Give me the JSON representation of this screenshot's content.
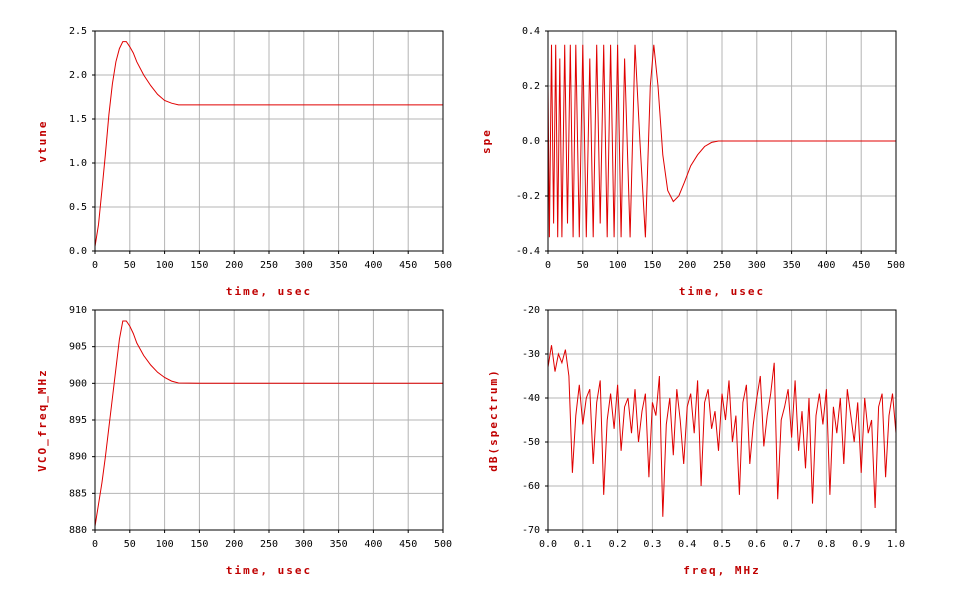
{
  "colors": {
    "trace": "#e00000",
    "label": "#c00000",
    "grid": "#b4b4b4",
    "axis": "#000000"
  },
  "chart_data": [
    {
      "type": "line",
      "xlabel": "time, usec",
      "ylabel": "vtune",
      "xlim": [
        0,
        500
      ],
      "ylim": [
        0,
        2.5
      ],
      "xticks": [
        "0",
        "50",
        "100",
        "150",
        "200",
        "250",
        "300",
        "350",
        "400",
        "450",
        "500"
      ],
      "yticks": [
        "0.0",
        "0.5",
        "1.0",
        "1.5",
        "2.0",
        "2.5"
      ],
      "grid": true,
      "series": [
        {
          "x": [
            0,
            5,
            10,
            15,
            20,
            25,
            30,
            35,
            40,
            45,
            50,
            55,
            60,
            70,
            80,
            90,
            100,
            110,
            120,
            150,
            200,
            300,
            400,
            500
          ],
          "y": [
            0.05,
            0.3,
            0.7,
            1.1,
            1.55,
            1.9,
            2.15,
            2.3,
            2.38,
            2.38,
            2.32,
            2.25,
            2.15,
            2.0,
            1.88,
            1.78,
            1.71,
            1.68,
            1.66,
            1.66,
            1.66,
            1.66,
            1.66,
            1.66
          ]
        }
      ]
    },
    {
      "type": "line",
      "xlabel": "time, usec",
      "ylabel": "spe",
      "xlim": [
        0,
        500
      ],
      "ylim": [
        -0.4,
        0.4
      ],
      "xticks": [
        "0",
        "50",
        "100",
        "150",
        "200",
        "250",
        "300",
        "350",
        "400",
        "450",
        "500"
      ],
      "yticks": [
        "-0.4",
        "-0.2",
        "0.0",
        "0.2",
        "0.4"
      ],
      "grid": true,
      "series": [
        {
          "x": [
            0,
            2,
            5,
            8,
            11,
            14,
            17,
            20,
            24,
            28,
            32,
            36,
            40,
            45,
            50,
            55,
            60,
            65,
            70,
            75,
            80,
            85,
            90,
            95,
            100,
            105,
            110,
            118,
            125,
            132,
            140,
            147,
            152,
            158,
            165,
            172,
            180,
            188,
            196,
            205,
            215,
            225,
            235,
            245,
            250,
            300,
            350,
            400,
            450,
            500
          ],
          "y": [
            0.2,
            -0.35,
            0.35,
            -0.3,
            0.35,
            -0.35,
            0.3,
            -0.35,
            0.35,
            -0.3,
            0.35,
            -0.35,
            0.35,
            -0.35,
            0.35,
            -0.35,
            0.3,
            -0.35,
            0.35,
            -0.3,
            0.35,
            -0.35,
            0.35,
            -0.35,
            0.35,
            -0.35,
            0.3,
            -0.35,
            0.35,
            0.0,
            -0.35,
            0.2,
            0.35,
            0.2,
            -0.05,
            -0.18,
            -0.22,
            -0.2,
            -0.15,
            -0.09,
            -0.05,
            -0.02,
            -0.005,
            0.0,
            0.0,
            0.0,
            0.0,
            0.0,
            0.0,
            0.0
          ]
        }
      ]
    },
    {
      "type": "line",
      "xlabel": "time, usec",
      "ylabel": "VCO_freq_MHz",
      "xlim": [
        0,
        500
      ],
      "ylim": [
        880,
        910
      ],
      "xticks": [
        "0",
        "50",
        "100",
        "150",
        "200",
        "250",
        "300",
        "350",
        "400",
        "450",
        "500"
      ],
      "yticks": [
        "880",
        "885",
        "890",
        "895",
        "900",
        "905",
        "910"
      ],
      "grid": true,
      "series": [
        {
          "x": [
            0,
            5,
            10,
            15,
            20,
            25,
            30,
            35,
            40,
            45,
            50,
            55,
            60,
            70,
            80,
            90,
            100,
            110,
            120,
            150,
            200,
            300,
            400,
            500
          ],
          "y": [
            880.5,
            883.5,
            886.5,
            890,
            894,
            898,
            902,
            906,
            908.5,
            908.5,
            907.8,
            906.8,
            905.5,
            903.8,
            902.5,
            901.5,
            900.8,
            900.3,
            900.05,
            900.0,
            900.0,
            900.0,
            900.0,
            900.0
          ]
        }
      ]
    },
    {
      "type": "line",
      "xlabel": "freq, MHz",
      "ylabel": "dB(spectrum)",
      "xlim": [
        0,
        1.0
      ],
      "ylim": [
        -70,
        -20
      ],
      "xticks": [
        "0.0",
        "0.1",
        "0.2",
        "0.3",
        "0.4",
        "0.5",
        "0.6",
        "0.7",
        "0.8",
        "0.9",
        "1.0"
      ],
      "yticks": [
        "-70",
        "-60",
        "-50",
        "-40",
        "-30",
        "-20"
      ],
      "grid": true,
      "series": [
        {
          "x": [
            0.0,
            0.01,
            0.02,
            0.03,
            0.04,
            0.05,
            0.06,
            0.07,
            0.08,
            0.09,
            0.1,
            0.11,
            0.12,
            0.13,
            0.14,
            0.15,
            0.16,
            0.17,
            0.18,
            0.19,
            0.2,
            0.21,
            0.22,
            0.23,
            0.24,
            0.25,
            0.26,
            0.27,
            0.28,
            0.29,
            0.3,
            0.31,
            0.32,
            0.33,
            0.34,
            0.35,
            0.36,
            0.37,
            0.38,
            0.39,
            0.4,
            0.41,
            0.42,
            0.43,
            0.44,
            0.45,
            0.46,
            0.47,
            0.48,
            0.49,
            0.5,
            0.51,
            0.52,
            0.53,
            0.54,
            0.55,
            0.56,
            0.57,
            0.58,
            0.59,
            0.6,
            0.61,
            0.62,
            0.63,
            0.64,
            0.65,
            0.66,
            0.67,
            0.68,
            0.69,
            0.7,
            0.71,
            0.72,
            0.73,
            0.74,
            0.75,
            0.76,
            0.77,
            0.78,
            0.79,
            0.8,
            0.81,
            0.82,
            0.83,
            0.84,
            0.85,
            0.86,
            0.87,
            0.88,
            0.89,
            0.9,
            0.91,
            0.92,
            0.93,
            0.94,
            0.95,
            0.96,
            0.97,
            0.98,
            0.99,
            1.0
          ],
          "y": [
            -33,
            -28,
            -34,
            -30,
            -32,
            -29,
            -35,
            -57,
            -44,
            -37,
            -46,
            -40,
            -38,
            -55,
            -41,
            -36,
            -62,
            -45,
            -39,
            -47,
            -37,
            -52,
            -42,
            -40,
            -48,
            -38,
            -50,
            -43,
            -39,
            -58,
            -41,
            -44,
            -35,
            -67,
            -46,
            -40,
            -53,
            -38,
            -45,
            -55,
            -42,
            -39,
            -48,
            -36,
            -60,
            -41,
            -38,
            -47,
            -43,
            -52,
            -39,
            -45,
            -36,
            -50,
            -44,
            -62,
            -41,
            -37,
            -55,
            -46,
            -40,
            -35,
            -51,
            -44,
            -39,
            -32,
            -63,
            -45,
            -42,
            -38,
            -49,
            -36,
            -52,
            -43,
            -56,
            -40,
            -64,
            -44,
            -39,
            -46,
            -38,
            -62,
            -42,
            -48,
            -40,
            -55,
            -38,
            -44,
            -50,
            -41,
            -57,
            -40,
            -48,
            -45,
            -65,
            -42,
            -39,
            -58,
            -44,
            -39,
            -48
          ]
        }
      ]
    }
  ]
}
